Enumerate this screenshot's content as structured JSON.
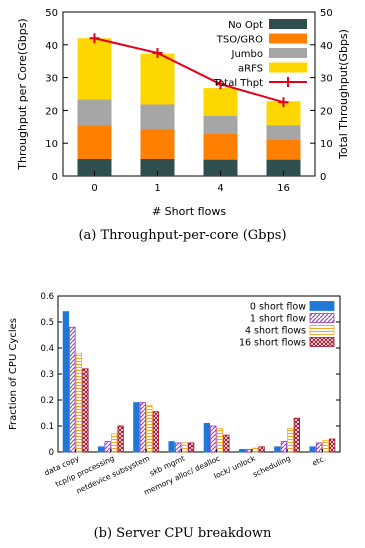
{
  "captions": {
    "chart1": "(a)  Throughput-per-core (Gbps)",
    "chart2": "(b)  Server CPU breakdown"
  },
  "chart_data": [
    {
      "type": "bar",
      "stacked": true,
      "xlabel": "# Short flows",
      "ylabel": "Throughput per Core(Gbps)",
      "y2label": "Total Throughput(Gbps)",
      "ylim": [
        0,
        50
      ],
      "y2lim": [
        0,
        50
      ],
      "yticks": [
        0,
        10,
        20,
        30,
        40,
        50
      ],
      "categories": [
        "0",
        "1",
        "4",
        "16"
      ],
      "legend_position": "top-right",
      "colors": {
        "No Opt": "#2f4f4f",
        "TSO/GRO": "#ff7f00",
        "Jumbo": "#a6a6a6",
        "aRFS": "#ffd700",
        "Total Thpt": "#e3001b"
      },
      "series": [
        {
          "name": "No Opt",
          "values": [
            5.2,
            5.2,
            5.0,
            5.0
          ]
        },
        {
          "name": "TSO/GRO",
          "values": [
            10.2,
            9.1,
            7.8,
            6.2
          ]
        },
        {
          "name": "Jumbo",
          "values": [
            8.0,
            7.5,
            5.6,
            4.3
          ]
        },
        {
          "name": "aRFS",
          "values": [
            18.6,
            15.5,
            8.4,
            7.3
          ]
        }
      ],
      "line_series": {
        "name": "Total Thpt",
        "values": [
          42.0,
          37.5,
          28.0,
          22.5
        ]
      }
    },
    {
      "type": "bar",
      "ylabel": "Fraction of CPU Cycles",
      "ylim": [
        0,
        0.6
      ],
      "yticks": [
        "0",
        "0.1",
        "0.2",
        "0.3",
        "0.4",
        "0.5",
        "0.6"
      ],
      "categories": [
        "data copy",
        "tcp/ip processing",
        "netdevice subsystem",
        "skb mgmt",
        "memory alloc/ dealloc",
        "lock/ unlock",
        "scheduling",
        "etc."
      ],
      "legend_position": "top-right",
      "series": [
        {
          "name": "0 short flow",
          "color": "#1f78d4",
          "values": [
            0.54,
            0.02,
            0.19,
            0.04,
            0.11,
            0.01,
            0.02,
            0.02
          ]
        },
        {
          "name": "1 short flow",
          "color": "#9b30c8",
          "values": [
            0.48,
            0.04,
            0.19,
            0.035,
            0.1,
            0.01,
            0.04,
            0.035
          ]
        },
        {
          "name": "4 short flows",
          "color": "#f5a623",
          "values": [
            0.38,
            0.07,
            0.18,
            0.035,
            0.09,
            0.015,
            0.09,
            0.045
          ]
        },
        {
          "name": "16 short flows",
          "color": "#a0142a",
          "values": [
            0.32,
            0.1,
            0.155,
            0.035,
            0.065,
            0.02,
            0.13,
            0.05
          ]
        }
      ]
    }
  ]
}
